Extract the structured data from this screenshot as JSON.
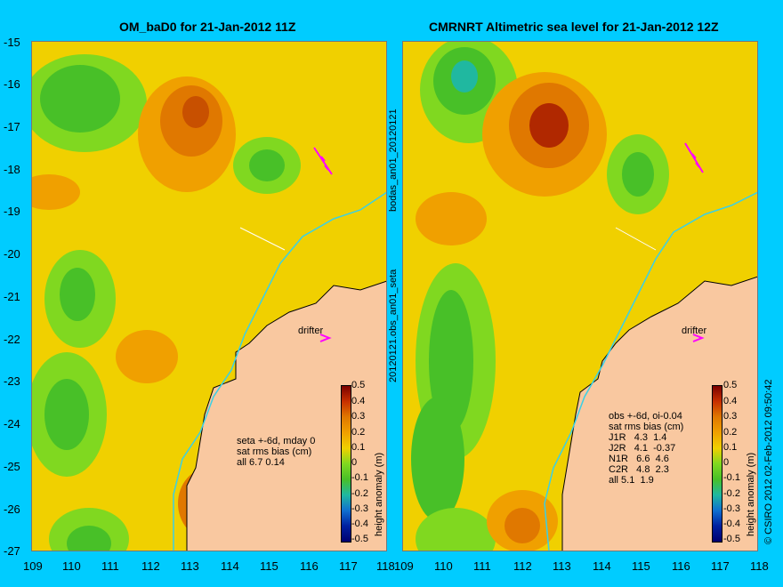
{
  "colors": {
    "background": "#00ccff",
    "land": "#f9c8a0",
    "coast": "#000000",
    "shelf_contour": "#3ad0e6",
    "obs_marker": "#ff00ff"
  },
  "left_panel": {
    "title": "OM_baD0 for 21-Jan-2012 11Z",
    "info_lines": [
      "seta +-6d, mday 0",
      "sat rms bias (cm)",
      "all 6.7 0.14"
    ],
    "drifter_label": "drifter"
  },
  "right_panel": {
    "title": "CMRNRT Altimetric sea level  for 21-Jan-2012 12Z",
    "info_lines": [
      "obs +-6d, oi-0.04",
      "sat rms bias (cm)",
      "J1R   4.3  1.4",
      "J2R   4.1  -0.37",
      "N1R   6.6  4.6",
      "C2R   4.8  2.3",
      "all 5.1  1.9"
    ],
    "drifter_label": "drifter"
  },
  "side_labels": {
    "top": "bodas_an01_20120121",
    "bottom": "20120121.obs_an01_seta"
  },
  "axes": {
    "y_ticks": [
      "-15",
      "-16",
      "-17",
      "-18",
      "-19",
      "-20",
      "-21",
      "-22",
      "-23",
      "-24",
      "-25",
      "-26",
      "-27"
    ],
    "x_ticks": [
      "109",
      "110",
      "111",
      "112",
      "113",
      "114",
      "115",
      "116",
      "117",
      "118"
    ]
  },
  "colorbar": {
    "label": "height anomaly (m)",
    "ticks": [
      "0.5",
      "0.4",
      "0.3",
      "0.2",
      "0.1",
      "0",
      "-0.1",
      "-0.2",
      "-0.3",
      "-0.4",
      "-0.5"
    ],
    "range": [
      -0.5,
      0.5
    ]
  },
  "credit": "© CSIRO 2012   02-Feb-2012 09:50:42"
}
